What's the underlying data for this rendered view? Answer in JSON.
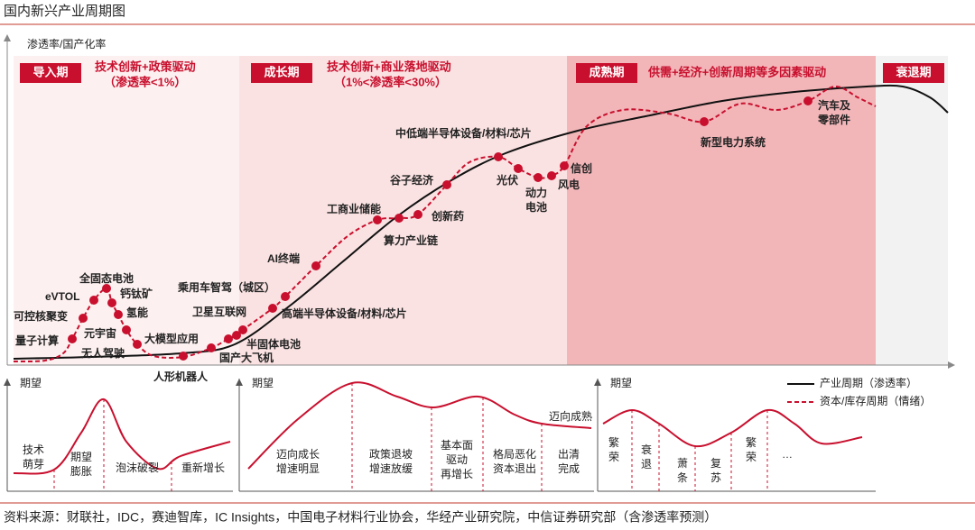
{
  "header": {
    "title": "国内新兴产业周期图"
  },
  "chart": {
    "y_axis_label": "渗透率/国产化率",
    "phases": [
      {
        "name": "导入期",
        "driver": "技术创新+政策驱动",
        "note": "（渗透率<1%）"
      },
      {
        "name": "成长期",
        "driver": "技术创新+商业落地驱动",
        "note": "（1%<渗透率<30%）"
      },
      {
        "name": "成熟期",
        "driver": "供需+经济+创新周期等多因素驱动"
      },
      {
        "name": "衰退期"
      }
    ],
    "industries": [
      [
        "量子计算"
      ],
      [
        "可控核聚变"
      ],
      [
        "eVTOL"
      ],
      [
        "全固态电池"
      ],
      [
        "钙钛矿"
      ],
      [
        "氢能"
      ],
      [
        "元宇宙"
      ],
      [
        "无人驾驶"
      ],
      [
        "大模型应用"
      ],
      [
        "人形机器人"
      ],
      [
        "卫星互联网"
      ],
      [
        "国产大飞机"
      ],
      [
        "半固体电池"
      ],
      [
        "乘用车智驾（城区）"
      ],
      [
        "高端半导体设备/材料/芯片"
      ],
      [
        "AI终端"
      ],
      [
        "工商业储能"
      ],
      [
        "算力产业链"
      ],
      [
        "创新药"
      ],
      [
        "谷子经济"
      ],
      [
        "中低端半导体设备/材料/芯片"
      ],
      [
        "光伏"
      ],
      [
        "动力",
        "电池"
      ],
      [
        "风电"
      ],
      [
        "信创"
      ],
      [
        "新型电力系统"
      ],
      [
        "汽车及",
        "零部件"
      ]
    ]
  },
  "legend": [
    "产业周期（渗透率）",
    "资本/库存周期（情绪）"
  ],
  "panels": [
    {
      "y_label": "期望",
      "stages": [
        [
          "技术",
          "萌芽"
        ],
        [
          "期望",
          "膨胀"
        ],
        [
          "泡沫破裂"
        ],
        [
          "重新增长"
        ]
      ]
    },
    {
      "y_label": "期望",
      "stages": [
        [
          "迈向成长",
          "增速明显"
        ],
        [
          "政策退坡",
          "增速放缓"
        ],
        [
          "基本面",
          "驱动",
          "再增长"
        ],
        [
          "格局恶化",
          "资本退出"
        ],
        [
          "出清",
          "完成"
        ]
      ],
      "note": "迈向成熟"
    },
    {
      "y_label": "期望",
      "stages": [
        [
          "繁",
          "荣"
        ],
        [
          "衰",
          "退"
        ],
        [
          "萧",
          "条"
        ],
        [
          "复",
          "苏"
        ],
        [
          "繁",
          "荣"
        ],
        [
          "…"
        ]
      ]
    }
  ],
  "source": "资料来源：财联社，IDC，赛迪智库，IC Insights，中国电子材料行业协会，华经产业研究院，中信证券研究部（含渗透率预测）"
}
